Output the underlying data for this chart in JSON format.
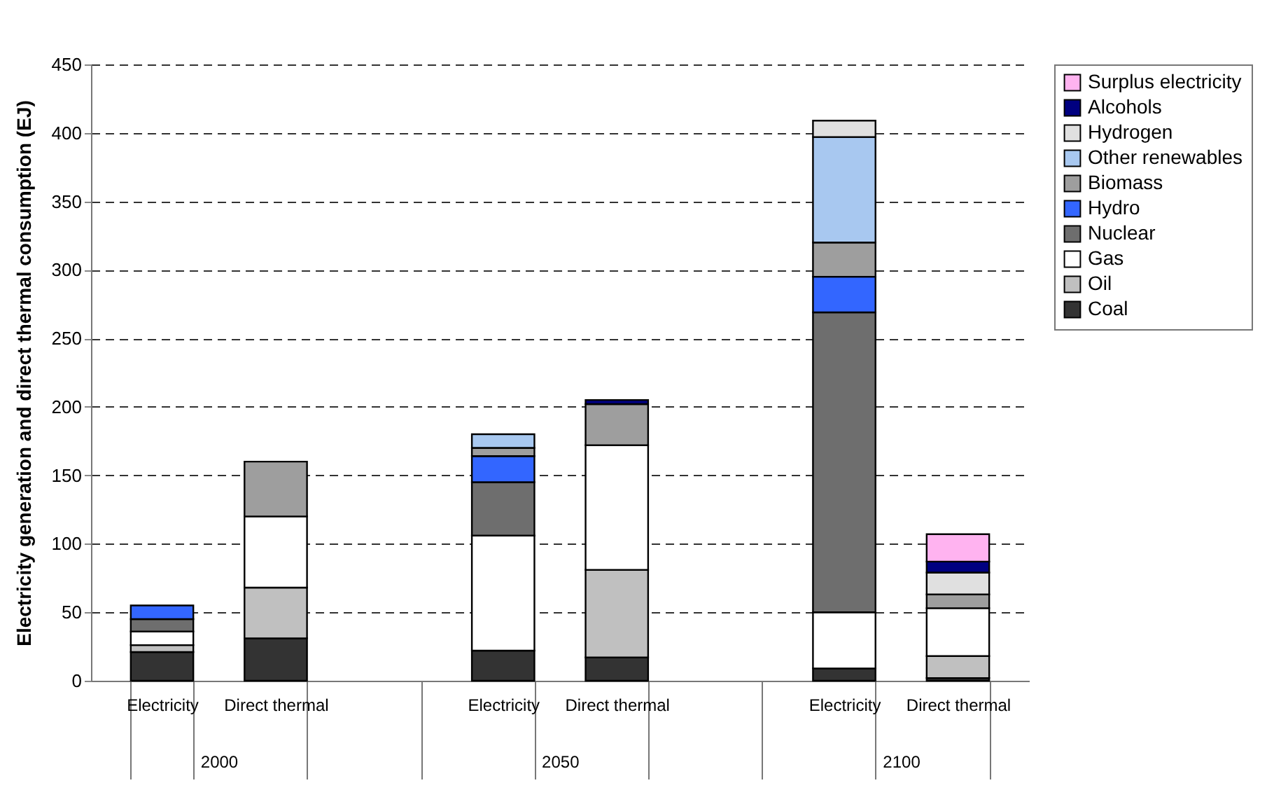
{
  "chart_data": {
    "type": "bar",
    "stacked": true,
    "ylabel": "Electricity generation and direct thermal consumption (EJ)",
    "categories": [
      "Electricity",
      "Direct thermal",
      null,
      "Electricity",
      "Direct thermal",
      null,
      "Electricity",
      "Direct thermal"
    ],
    "annotations": [
      "2000",
      "2050",
      "2100"
    ],
    "ylim": [
      0,
      450
    ],
    "yticks": [
      0,
      50,
      100,
      150,
      200,
      250,
      300,
      350,
      400,
      450
    ],
    "grid": "y",
    "legend": "right",
    "series": [
      {
        "name": "Coal",
        "color": "#333333",
        "values": [
          21,
          31,
          null,
          22,
          17,
          null,
          9,
          2
        ]
      },
      {
        "name": "Oil",
        "color": "#c0c0c0",
        "values": [
          5,
          37,
          null,
          0,
          64,
          null,
          0,
          16
        ]
      },
      {
        "name": "Gas",
        "color": "#ffffff",
        "values": [
          10,
          52,
          null,
          84,
          91,
          null,
          41,
          35
        ]
      },
      {
        "name": "Nuclear",
        "color": "#6e6e6e",
        "values": [
          9,
          0,
          null,
          39,
          0,
          null,
          219,
          0
        ]
      },
      {
        "name": "Hydro",
        "color": "#3366ff",
        "values": [
          10,
          0,
          null,
          19,
          0,
          null,
          26,
          0
        ]
      },
      {
        "name": "Biomass",
        "color": "#9e9e9e",
        "values": [
          0,
          40,
          null,
          6,
          30,
          null,
          25,
          10
        ]
      },
      {
        "name": "Other renewables",
        "color": "#a8c8f0",
        "values": [
          0,
          0,
          null,
          10,
          0,
          null,
          77,
          0
        ]
      },
      {
        "name": "Hydrogen",
        "color": "#e0e0e0",
        "values": [
          0,
          0,
          null,
          0,
          0,
          null,
          12,
          16
        ]
      },
      {
        "name": "Alcohols",
        "color": "#000080",
        "values": [
          0,
          0,
          null,
          0,
          3,
          null,
          0,
          8
        ]
      },
      {
        "name": "Surplus electricity",
        "color": "#ffb3f0",
        "values": [
          0,
          0,
          null,
          0,
          0,
          null,
          0,
          20
        ]
      }
    ]
  }
}
